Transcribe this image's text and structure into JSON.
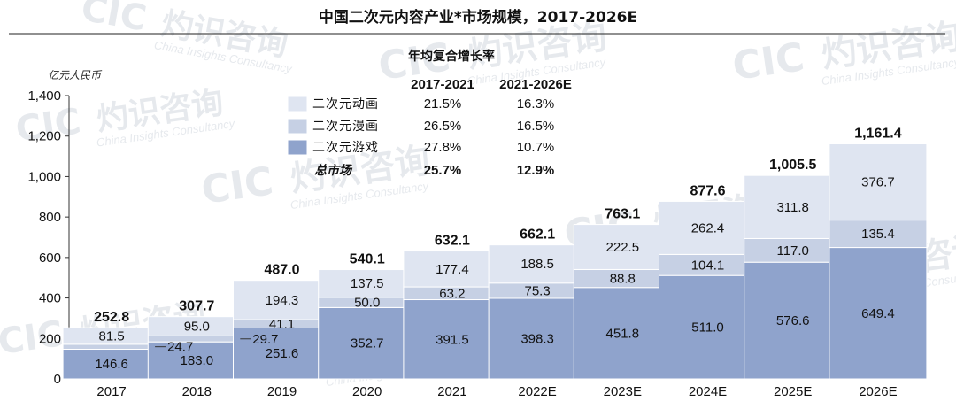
{
  "chart_data": {
    "type": "bar",
    "stacked": true,
    "title": "中国二次元内容产业*市场规模，2017-2026E",
    "unit_label": "亿元人民币",
    "categories": [
      "2017",
      "2018",
      "2019",
      "2020",
      "2021",
      "2022E",
      "2023E",
      "2024E",
      "2025E",
      "2026E"
    ],
    "ylim": [
      0,
      1400
    ],
    "yticks": [
      "0",
      "200",
      "400",
      "600",
      "800",
      "1,000",
      "1,200",
      "1,400"
    ],
    "ytick_values": [
      0,
      200,
      400,
      600,
      800,
      1000,
      1200,
      1400
    ],
    "grid": false,
    "series": [
      {
        "name": "二次元游戏",
        "color": "#8fa3cc",
        "values": [
          146.6,
          183.0,
          251.6,
          352.7,
          391.5,
          398.3,
          451.8,
          511.0,
          576.6,
          649.4
        ],
        "labels": [
          "146.6",
          "183.0",
          "251.6",
          "352.7",
          "391.5",
          "398.3",
          "451.8",
          "511.0",
          "576.6",
          "649.4"
        ]
      },
      {
        "name": "二次元漫画",
        "color": "#c6d0e4",
        "values": [
          24.7,
          29.7,
          41.1,
          50.0,
          63.2,
          75.3,
          88.8,
          104.1,
          117.0,
          135.4
        ],
        "labels": [
          "24.7",
          "29.7",
          "41.1",
          "50.0",
          "63.2",
          "75.3",
          "88.8",
          "104.1",
          "117.0",
          "135.4"
        ]
      },
      {
        "name": "二次元动画",
        "color": "#dfe5f1",
        "values": [
          81.5,
          95.0,
          194.3,
          137.5,
          177.4,
          188.5,
          222.5,
          262.4,
          311.8,
          376.7
        ],
        "labels": [
          "81.5",
          "95.0",
          "194.3",
          "137.5",
          "177.4",
          "188.5",
          "222.5",
          "262.4",
          "311.8",
          "376.7"
        ]
      }
    ],
    "totals": [
      252.8,
      307.7,
      487.0,
      540.1,
      632.1,
      662.1,
      763.1,
      877.6,
      1005.5,
      1161.4
    ],
    "total_labels": [
      "252.8",
      "307.7",
      "487.0",
      "540.1",
      "632.1",
      "662.1",
      "763.1",
      "877.6",
      "1,005.5",
      "1,161.4"
    ],
    "legend_placement": "top-left",
    "cagr_table": {
      "title": "年均复合增长率",
      "columns": [
        "2017-2021",
        "2021-2026E"
      ],
      "rows": [
        {
          "label": "二次元动画",
          "color": "#dfe5f1",
          "values": [
            "21.5%",
            "16.3%"
          ]
        },
        {
          "label": "二次元漫画",
          "color": "#c6d0e4",
          "values": [
            "26.5%",
            "16.5%"
          ]
        },
        {
          "label": "二次元游戏",
          "color": "#8fa3cc",
          "values": [
            "27.8%",
            "10.7%"
          ]
        },
        {
          "label": "总市场",
          "values": [
            "25.7%",
            "12.9%"
          ]
        }
      ]
    }
  },
  "watermark": {
    "logo_text": "CIC",
    "brand_cn": "灼识咨询",
    "brand_en": "China Insights Consultancy"
  }
}
